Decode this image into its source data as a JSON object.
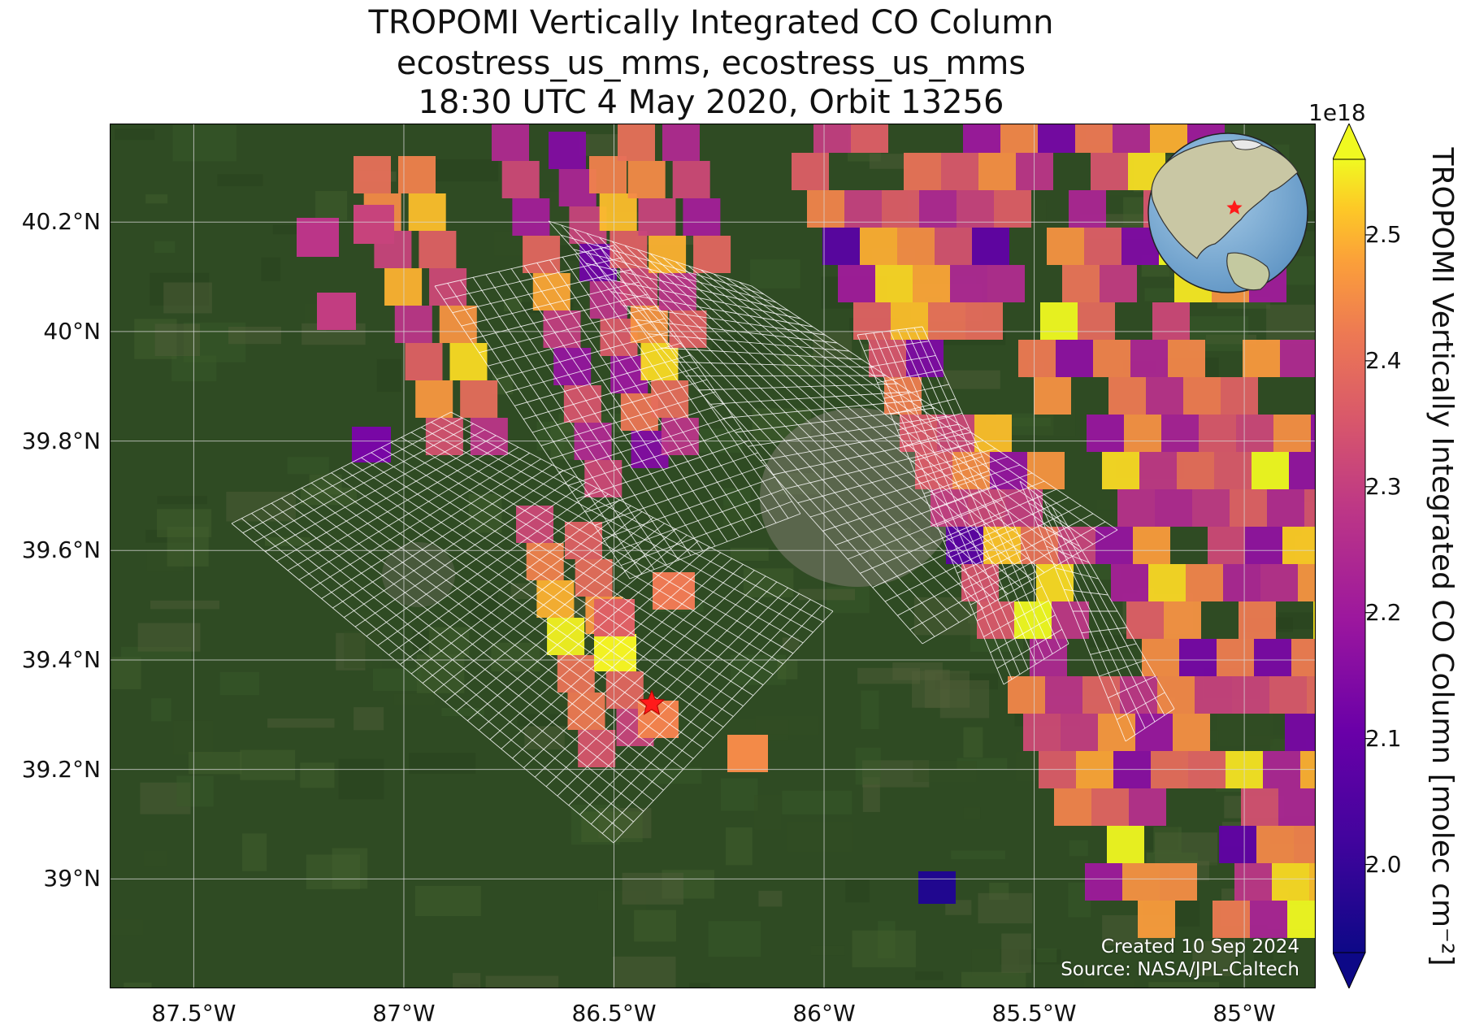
{
  "title": {
    "line1": "TROPOMI Vertically Integrated CO Column",
    "line2": "ecostress_us_mms, ecostress_us_mms",
    "line3": "18:30 UTC 4 May 2020, Orbit 13256"
  },
  "axes": {
    "lon_range": [
      -87.7,
      -84.83
    ],
    "lat_range": [
      38.8,
      40.38
    ],
    "x_ticks": [
      {
        "value": -87.5,
        "label": "87.5°W"
      },
      {
        "value": -87.0,
        "label": "87°W"
      },
      {
        "value": -86.5,
        "label": "86.5°W"
      },
      {
        "value": -86.0,
        "label": "86°W"
      },
      {
        "value": -85.5,
        "label": "85.5°W"
      },
      {
        "value": -85.0,
        "label": "85°W"
      }
    ],
    "y_ticks": [
      {
        "value": 40.2,
        "label": "40.2°N"
      },
      {
        "value": 40.0,
        "label": "40°N"
      },
      {
        "value": 39.8,
        "label": "39.8°N"
      },
      {
        "value": 39.6,
        "label": "39.6°N"
      },
      {
        "value": 39.4,
        "label": "39.4°N"
      },
      {
        "value": 39.2,
        "label": "39.2°N"
      },
      {
        "value": 39.0,
        "label": "39°N"
      }
    ],
    "grid": true
  },
  "colorbar": {
    "label": "TROPOMI Vertically Integrated CO Column [molec cm⁻²]",
    "exponent": "1e18",
    "colormap": "plasma",
    "range": [
      1.93,
      2.56
    ],
    "extend": "both",
    "ticks": [
      {
        "value": 2.0,
        "label": "2.0"
      },
      {
        "value": 2.1,
        "label": "2.1"
      },
      {
        "value": 2.2,
        "label": "2.2"
      },
      {
        "value": 2.3,
        "label": "2.3"
      },
      {
        "value": 2.4,
        "label": "2.4"
      },
      {
        "value": 2.5,
        "label": "2.5"
      }
    ]
  },
  "site_marker": {
    "lon": -86.41,
    "lat": 39.32,
    "symbol": "star",
    "color": "#ff0000"
  },
  "inset_globe": {
    "center_lon": -86.4,
    "center_lat": 39.3,
    "marker": "star"
  },
  "credits": {
    "created": "Created 10 Sep 2024",
    "source": "Source: NASA/JPL-Caltech"
  },
  "colors": {
    "background_land": "#2e4a22",
    "grid": "#d8d8d8",
    "footprint_outline": "#ffffff",
    "ocean": "#7aaed4"
  }
}
